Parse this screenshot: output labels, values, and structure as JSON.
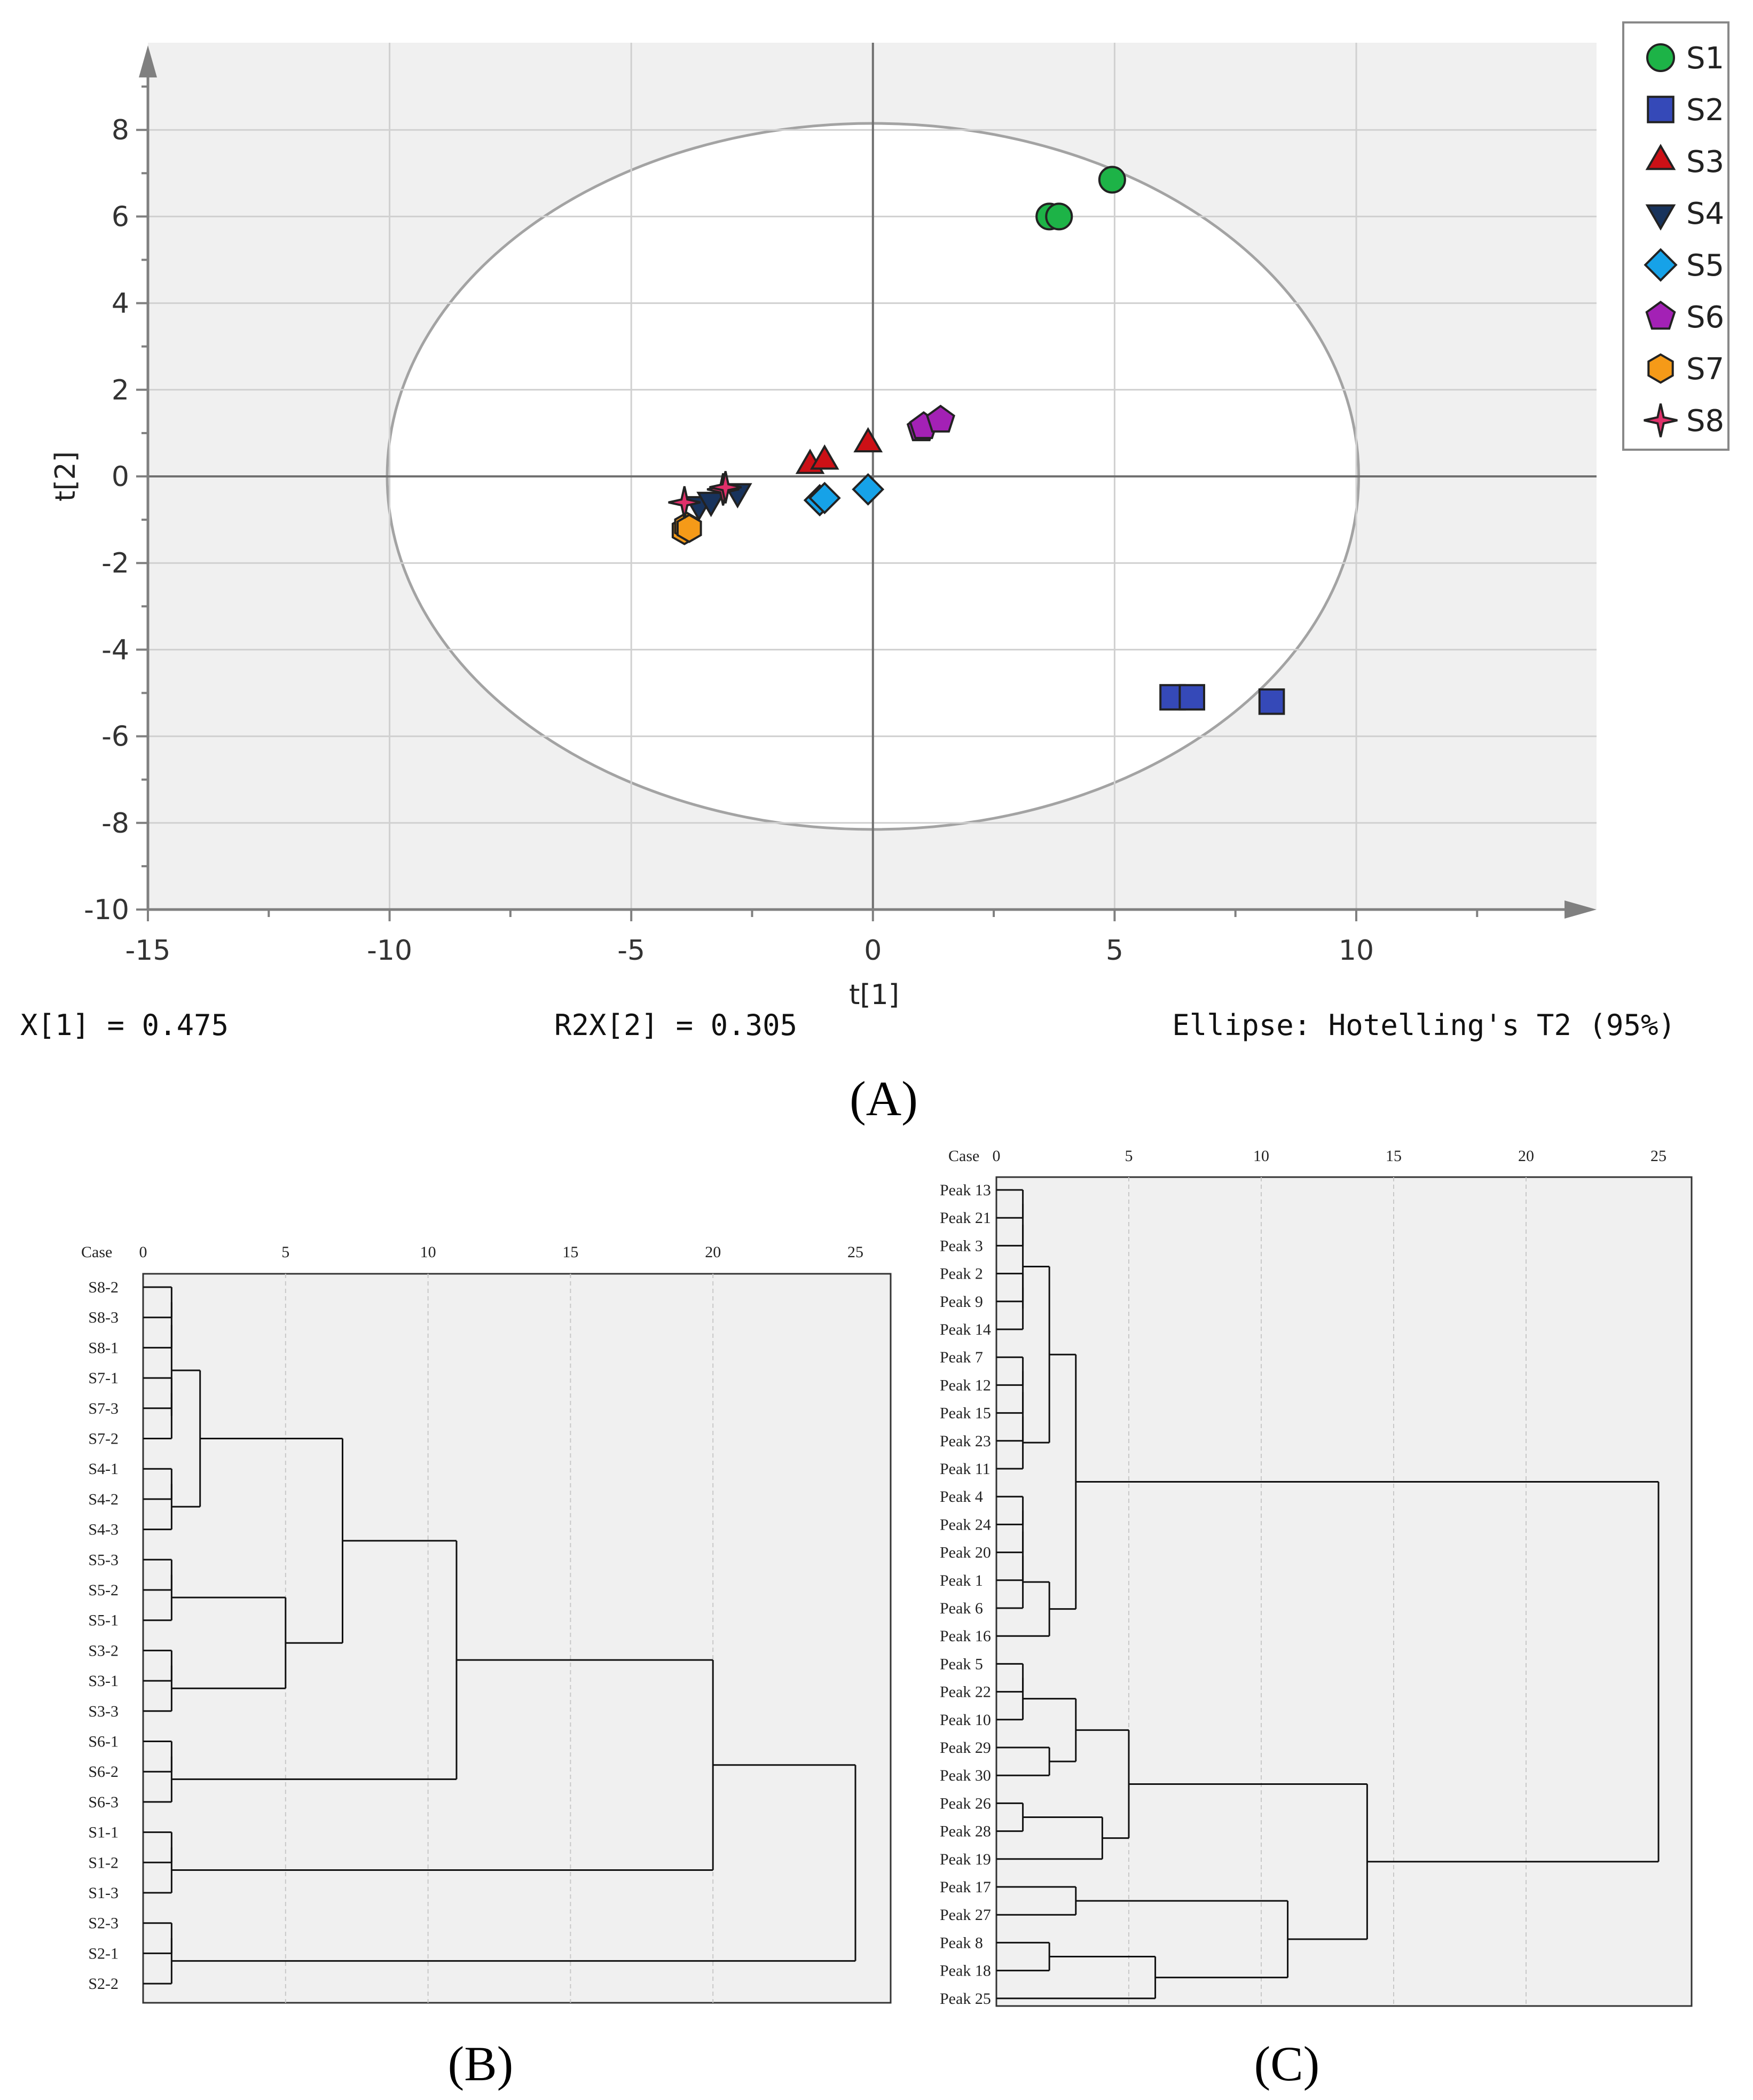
{
  "chart_data": [
    {
      "id": "A",
      "type": "scatter",
      "panel_label": "(A)",
      "xlabel": "t[1]",
      "ylabel": "t[2]",
      "xlim": [
        -15,
        15
      ],
      "ylim": [
        -10,
        10
      ],
      "xticks": [
        -15,
        -10,
        -5,
        0,
        5,
        10
      ],
      "yticks": [
        -10,
        -8,
        -6,
        -4,
        -2,
        0,
        2,
        4,
        6,
        8
      ],
      "grid": true,
      "legend_position": "top-right",
      "ellipse": {
        "center": [
          0,
          0
        ],
        "semi_axis_x": 10.05,
        "semi_axis_y": 8.15
      },
      "footer": [
        "X[1] = 0.475",
        "R2X[2] = 0.305",
        "Ellipse: Hotelling's T2 (95%)"
      ],
      "series": [
        {
          "name": "S1",
          "marker": "circle",
          "color": "#1db347",
          "points": [
            [
              3.65,
              6.0
            ],
            [
              3.85,
              6.0
            ],
            [
              4.95,
              6.85
            ]
          ]
        },
        {
          "name": "S2",
          "marker": "square",
          "color": "#3549b8",
          "points": [
            [
              6.2,
              -5.1
            ],
            [
              6.6,
              -5.1
            ],
            [
              8.25,
              -5.2
            ]
          ]
        },
        {
          "name": "S3",
          "marker": "triangle-up",
          "color": "#cc1016",
          "points": [
            [
              -1.3,
              0.25
            ],
            [
              -1.0,
              0.35
            ],
            [
              -0.1,
              0.75
            ]
          ]
        },
        {
          "name": "S4",
          "marker": "triangle-down",
          "color": "#18335c",
          "points": [
            [
              -3.6,
              -0.65
            ],
            [
              -3.35,
              -0.55
            ],
            [
              -2.8,
              -0.35
            ]
          ]
        },
        {
          "name": "S5",
          "marker": "diamond",
          "color": "#16a2e8",
          "points": [
            [
              -1.1,
              -0.55
            ],
            [
              -1.0,
              -0.5
            ],
            [
              -0.1,
              -0.3
            ]
          ]
        },
        {
          "name": "S6",
          "marker": "pentagon",
          "color": "#a321b5",
          "points": [
            [
              1.0,
              1.1
            ],
            [
              1.05,
              1.15
            ],
            [
              1.4,
              1.3
            ]
          ]
        },
        {
          "name": "S7",
          "marker": "hexagon",
          "color": "#f59a18",
          "points": [
            [
              -3.9,
              -1.25
            ],
            [
              -3.85,
              -1.15
            ],
            [
              -3.8,
              -1.2
            ]
          ]
        },
        {
          "name": "S8",
          "marker": "star4",
          "color": "#e0306a",
          "points": [
            [
              -3.9,
              -0.6
            ],
            [
              -3.1,
              -0.3
            ],
            [
              -3.05,
              -0.25
            ]
          ]
        }
      ]
    },
    {
      "id": "B",
      "type": "dendrogram",
      "panel_label": "(B)",
      "case_label": "Case",
      "xlim": [
        0,
        25
      ],
      "xticks": [
        0,
        5,
        10,
        15,
        20,
        25
      ],
      "leaves": [
        "S8-2",
        "S8-3",
        "S8-1",
        "S7-1",
        "S7-3",
        "S7-2",
        "S4-1",
        "S4-2",
        "S4-3",
        "S5-3",
        "S5-2",
        "S5-1",
        "S3-2",
        "S3-1",
        "S3-3",
        "S6-1",
        "S6-2",
        "S6-3",
        "S1-1",
        "S1-2",
        "S1-3",
        "S2-3",
        "S2-1",
        "S2-2"
      ],
      "merges": [
        [
          0,
          1,
          1
        ],
        [
          24,
          2,
          1
        ],
        [
          3,
          4,
          1
        ],
        [
          26,
          5,
          1
        ],
        [
          25,
          27,
          1
        ],
        [
          6,
          7,
          1
        ],
        [
          29,
          8,
          1
        ],
        [
          28,
          30,
          2
        ],
        [
          9,
          10,
          1
        ],
        [
          32,
          11,
          1
        ],
        [
          12,
          13,
          1
        ],
        [
          34,
          14,
          1
        ],
        [
          33,
          35,
          5
        ],
        [
          31,
          36,
          7
        ],
        [
          15,
          16,
          1
        ],
        [
          38,
          17,
          1
        ],
        [
          37,
          39,
          11
        ],
        [
          18,
          19,
          1
        ],
        [
          41,
          20,
          1
        ],
        [
          40,
          42,
          20
        ],
        [
          21,
          22,
          1
        ],
        [
          44,
          23,
          1
        ],
        [
          43,
          45,
          25
        ]
      ]
    },
    {
      "id": "C",
      "type": "dendrogram",
      "panel_label": "(C)",
      "case_label": "Case",
      "xlim": [
        0,
        25
      ],
      "xticks": [
        0,
        5,
        10,
        15,
        20,
        25
      ],
      "leaves": [
        "Peak 13",
        "Peak 21",
        "Peak 3",
        "Peak 2",
        "Peak 9",
        "Peak 14",
        "Peak 7",
        "Peak 12",
        "Peak 15",
        "Peak 23",
        "Peak 11",
        "Peak 4",
        "Peak 24",
        "Peak 20",
        "Peak 1",
        "Peak 6",
        "Peak 16",
        "Peak 5",
        "Peak 22",
        "Peak 10",
        "Peak 29",
        "Peak 30",
        "Peak 26",
        "Peak 28",
        "Peak 19",
        "Peak 17",
        "Peak 27",
        "Peak 8",
        "Peak 18",
        "Peak 25"
      ],
      "merges": [
        [
          0,
          1,
          1
        ],
        [
          30,
          2,
          1
        ],
        [
          3,
          4,
          1
        ],
        [
          32,
          5,
          1
        ],
        [
          31,
          33,
          1
        ],
        [
          6,
          7,
          1
        ],
        [
          35,
          8,
          1
        ],
        [
          36,
          9,
          1
        ],
        [
          37,
          10,
          1
        ],
        [
          34,
          38,
          2
        ],
        [
          11,
          12,
          1
        ],
        [
          40,
          13,
          1
        ],
        [
          41,
          14,
          1
        ],
        [
          42,
          15,
          1
        ],
        [
          43,
          16,
          2
        ],
        [
          39,
          44,
          3
        ],
        [
          17,
          18,
          1
        ],
        [
          46,
          19,
          1
        ],
        [
          20,
          21,
          2
        ],
        [
          47,
          48,
          3
        ],
        [
          22,
          23,
          1
        ],
        [
          50,
          24,
          4
        ],
        [
          49,
          51,
          5
        ],
        [
          25,
          26,
          3
        ],
        [
          27,
          28,
          2
        ],
        [
          54,
          29,
          6
        ],
        [
          53,
          55,
          11
        ],
        [
          52,
          56,
          14
        ],
        [
          45,
          57,
          25
        ]
      ]
    }
  ]
}
